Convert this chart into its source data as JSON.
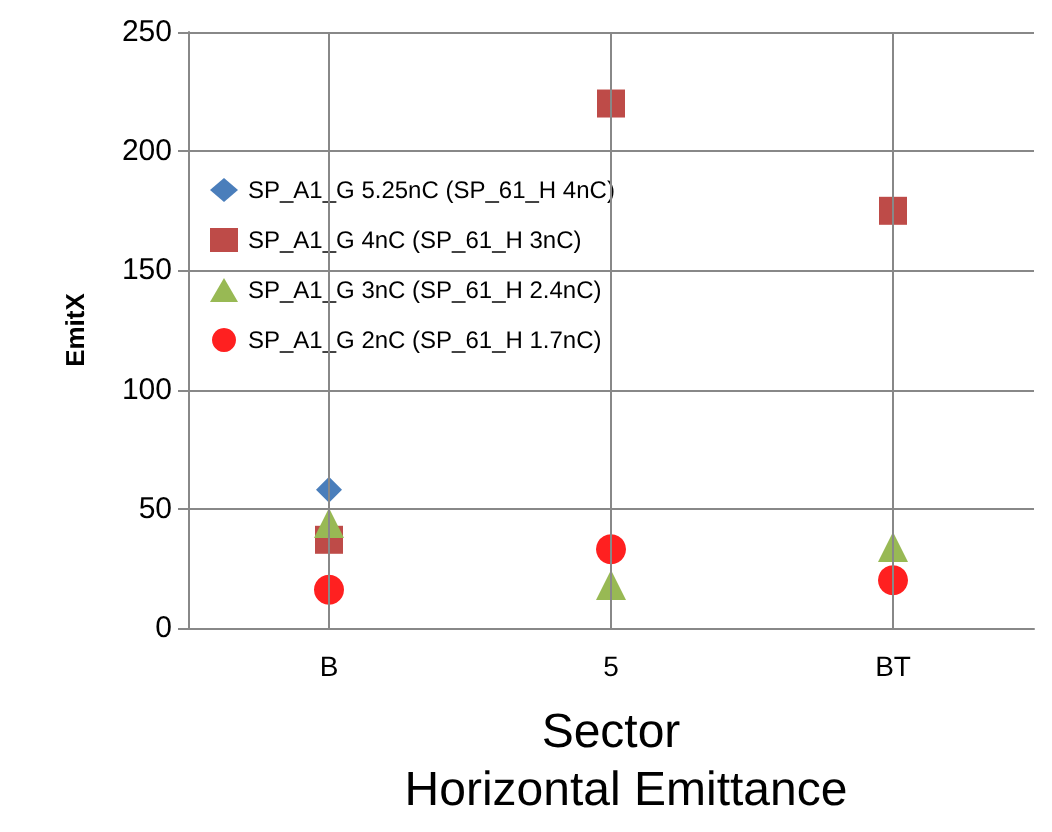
{
  "chart_data": {
    "type": "scatter",
    "title": "Horizontal Emittance",
    "xlabel": "Sector",
    "ylabel": "EmitX",
    "categories": [
      "B",
      "5",
      "BT"
    ],
    "series": [
      {
        "name": "SP_A1_G 5.25nC (SP_61_H 4nC)",
        "color": "#4a7ebb",
        "marker": "diamond",
        "values": [
          58,
          null,
          null
        ]
      },
      {
        "name": "SP_A1_G 4nC (SP_61_H 3nC)",
        "color": "#be4b48",
        "marker": "square",
        "values": [
          37,
          220,
          175
        ]
      },
      {
        "name": "SP_A1_G 3nC (SP_61_H 2.4nC)",
        "color": "#98b954",
        "marker": "triangle",
        "values": [
          44,
          18,
          34
        ]
      },
      {
        "name": "SP_A1_G 2nC (SP_61_H 1.7nC)",
        "color": "#ff2020",
        "marker": "circle",
        "values": [
          16,
          33,
          20
        ]
      }
    ],
    "ylim": [
      0,
      250
    ],
    "yticks": [
      0,
      50,
      100,
      150,
      200,
      250
    ],
    "grid": true,
    "legend": "top left"
  }
}
